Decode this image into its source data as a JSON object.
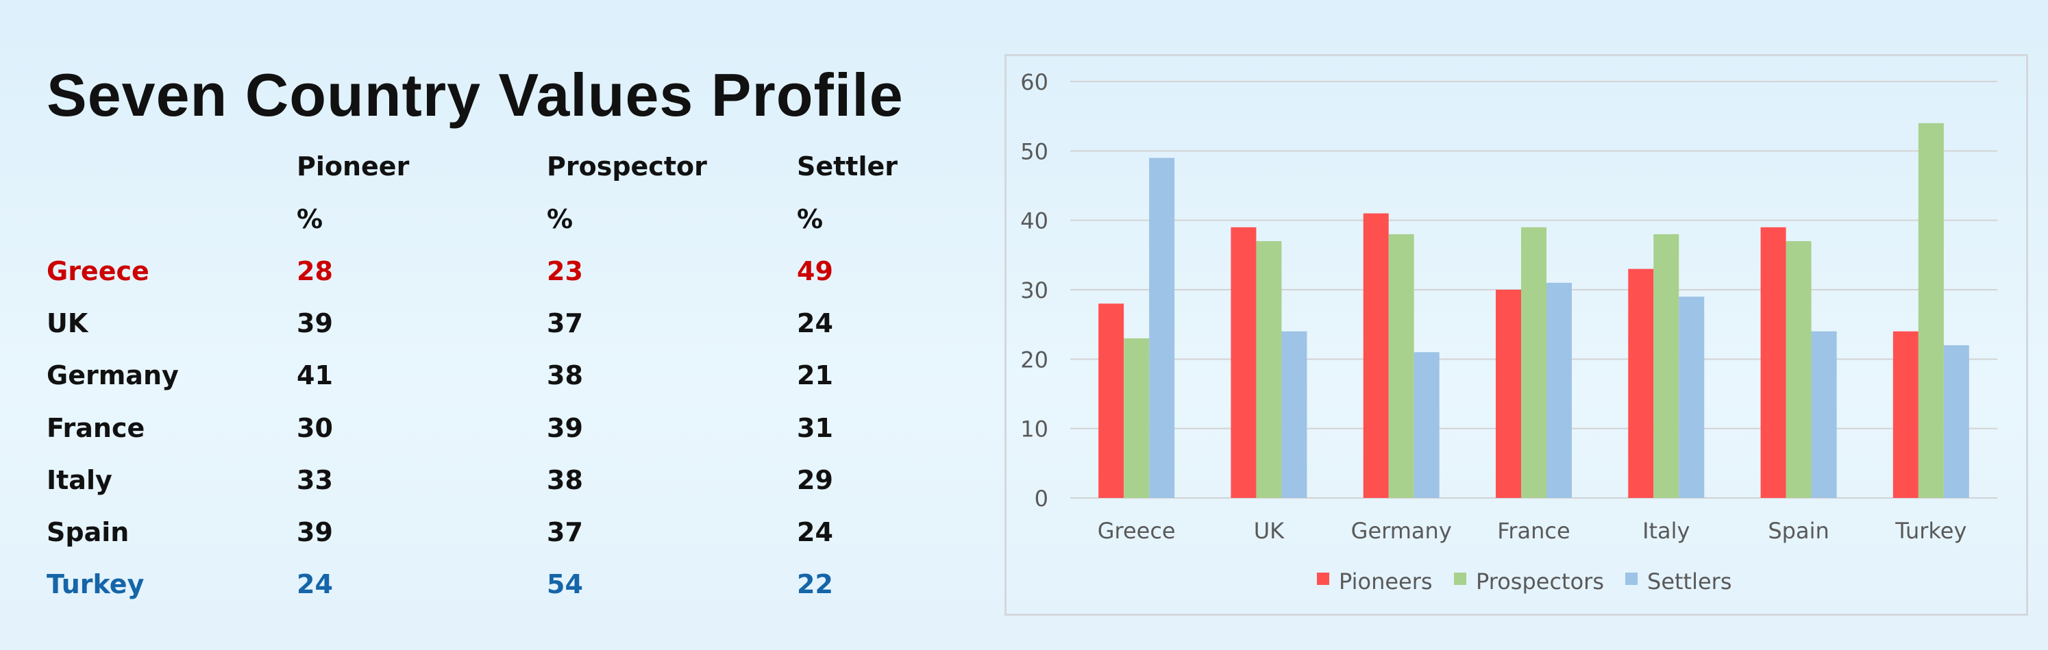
{
  "title": "Seven Country Values Profile",
  "table": {
    "headers": [
      "Pioneer",
      "Prospector",
      "Settler"
    ],
    "units": [
      "%",
      "%",
      "%"
    ],
    "rows": [
      {
        "country": "Greece",
        "values": [
          "28",
          "23",
          "49"
        ],
        "color": "#cc0000"
      },
      {
        "country": "UK",
        "values": [
          "39",
          "37",
          "24"
        ],
        "color": "#111111"
      },
      {
        "country": "Germany",
        "values": [
          "41",
          "38",
          "21"
        ],
        "color": "#111111"
      },
      {
        "country": "France",
        "values": [
          "30",
          "39",
          "31"
        ],
        "color": "#111111"
      },
      {
        "country": "Italy",
        "values": [
          "33",
          "38",
          "29"
        ],
        "color": "#111111"
      },
      {
        "country": "Spain",
        "values": [
          "39",
          "37",
          "24"
        ],
        "color": "#111111"
      },
      {
        "country": "Turkey",
        "values": [
          "24",
          "54",
          "22"
        ],
        "color": "#1565a8"
      }
    ]
  },
  "chart_data": {
    "type": "bar",
    "categories": [
      "Greece",
      "UK",
      "Germany",
      "France",
      "Italy",
      "Spain",
      "Turkey"
    ],
    "series": [
      {
        "name": "Pioneers",
        "color": "#ff5050",
        "values": [
          28,
          39,
          41,
          30,
          33,
          39,
          24
        ]
      },
      {
        "name": "Prospectors",
        "color": "#a8d18d",
        "values": [
          23,
          37,
          38,
          39,
          38,
          37,
          54
        ]
      },
      {
        "name": "Settlers",
        "color": "#9dc3e6",
        "values": [
          49,
          24,
          21,
          31,
          29,
          24,
          22
        ]
      }
    ],
    "yticks": [
      0,
      10,
      20,
      30,
      40,
      50,
      60
    ],
    "ylim": [
      0,
      60
    ],
    "grid": true,
    "legend": "bottom"
  }
}
